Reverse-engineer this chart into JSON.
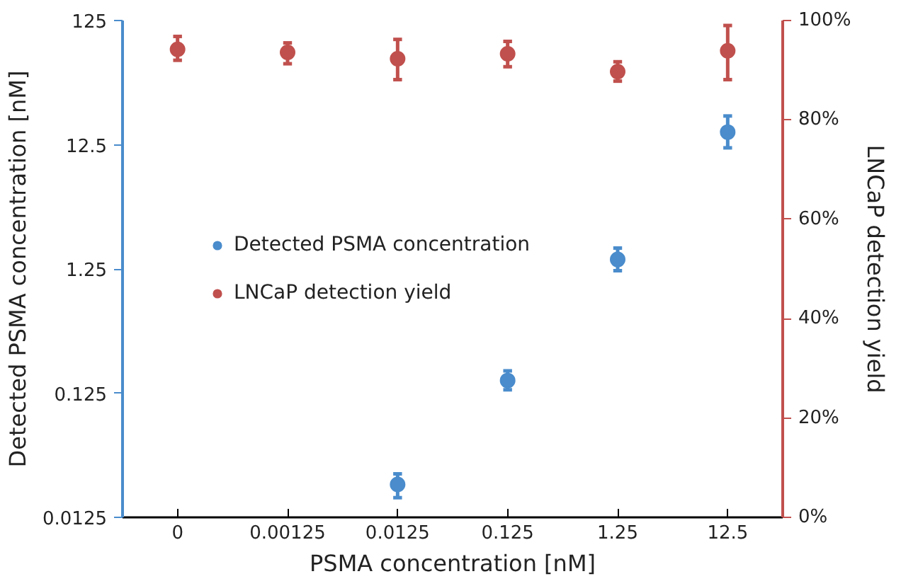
{
  "chart_data": {
    "type": "scatter",
    "xlabel": "PSMA concentration [nM]",
    "ylabel": "Detected PSMA concentration [nM]",
    "y2label": "LNCaP detection yield",
    "categories": [
      "0",
      "0.00125",
      "0.0125",
      "0.125",
      "1.25",
      "12.5"
    ],
    "series": [
      {
        "name": "Detected PSMA concentration",
        "color": "#4a8ccc",
        "values": [
          null,
          null,
          0.023,
          0.158,
          1.49,
          15.8
        ],
        "errors": [
          null,
          null,
          [
            0.018,
            0.028
          ],
          [
            0.133,
            0.189
          ],
          [
            1.21,
            1.84
          ],
          [
            11.8,
            21.3
          ]
        ]
      },
      {
        "name": "LNCaP detection yield",
        "color": "#c0504d",
        "axis": "y2",
        "values": [
          94.2,
          93.6,
          92.3,
          93.3,
          89.7,
          93.9
        ],
        "errors": [
          [
            92.0,
            96.8
          ],
          [
            91.3,
            95.5
          ],
          [
            88.1,
            96.2
          ],
          [
            90.7,
            95.8
          ],
          [
            87.8,
            91.7
          ],
          [
            88.1,
            99.0
          ]
        ]
      }
    ],
    "log": "y",
    "ylim": [
      0.0125,
      125
    ],
    "yticks": [
      0.0125,
      0.125,
      1.25,
      12.5,
      125
    ],
    "y2lim": [
      0,
      100
    ],
    "y2ticks": [
      {
        "value": 0,
        "label": "0%"
      },
      {
        "value": 20,
        "label": "20%"
      },
      {
        "value": 40,
        "label": "40%"
      },
      {
        "value": 60,
        "label": "60%"
      },
      {
        "value": 80,
        "label": "80%"
      },
      {
        "value": 100,
        "label": "100%"
      }
    ],
    "grid": false,
    "legend": "left",
    "marker": "circle"
  }
}
